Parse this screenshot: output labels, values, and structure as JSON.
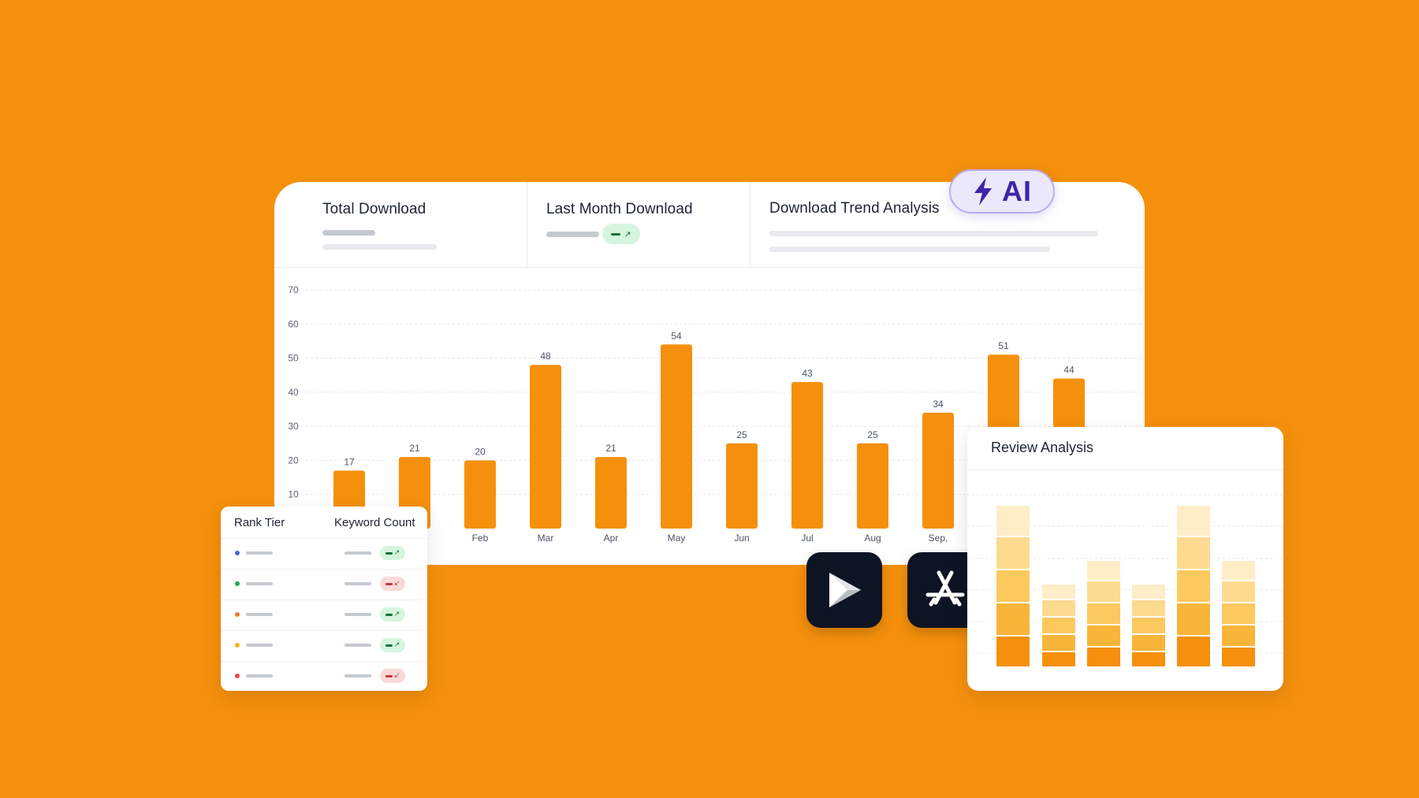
{
  "summary": {
    "total_download": {
      "title": "Total Download"
    },
    "last_month_download": {
      "title": "Last Month Download",
      "trend": "up"
    },
    "download_trend_analysis": {
      "title": "Download Trend Analysis"
    }
  },
  "ai_badge": {
    "label": "AI",
    "icon": "lightning-bolt-icon",
    "color": "#3d24a8",
    "background": "#ece8fb"
  },
  "colors": {
    "background": "#F5900C",
    "bar": "#F5900C",
    "trend_up_bg": "#d6f5df",
    "trend_down_bg": "#fbd9d9"
  },
  "chart_data": [
    {
      "type": "bar",
      "categories": [
        "",
        "",
        "Feb",
        "Mar",
        "Apr",
        "May",
        "Jun",
        "Jul",
        "Aug",
        "Sep,",
        "",
        ""
      ],
      "values": [
        17,
        21,
        20,
        48,
        21,
        54,
        25,
        43,
        25,
        34,
        51,
        44
      ],
      "data_labels": [
        "17",
        "21",
        "20",
        "48",
        "21",
        "54",
        "25",
        "43",
        "25",
        "34",
        "51",
        "44"
      ],
      "y_ticks": [
        "10",
        "20",
        "30",
        "40",
        "50",
        "60",
        "70"
      ],
      "ylim": [
        0,
        70
      ],
      "grid": true,
      "title": "",
      "xlabel": "",
      "ylabel": ""
    },
    {
      "type": "bar",
      "stacked": true,
      "title": "Review Analysis",
      "categories": [
        "",
        "",
        "",
        "",
        "",
        ""
      ],
      "series": [
        {
          "values": [
            40,
            20,
            26,
            20,
            40,
            26
          ]
        },
        {
          "values": [
            42,
            22,
            28,
            22,
            42,
            28
          ]
        },
        {
          "values": [
            42,
            22,
            28,
            22,
            42,
            28
          ]
        },
        {
          "values": [
            42,
            22,
            28,
            22,
            42,
            28
          ]
        },
        {
          "values": [
            40,
            20,
            26,
            20,
            40,
            26
          ]
        }
      ],
      "series_colors": [
        "#F5900C",
        "#F9B53A",
        "#FBC95E",
        "#FCDA90",
        "#FEEDC7"
      ],
      "grid": true
    }
  ],
  "rank_table": {
    "headers": [
      "Rank Tier",
      "Keyword Count"
    ],
    "rows": [
      {
        "dot_color": "#4a63d8",
        "trend": "up"
      },
      {
        "dot_color": "#22a65a",
        "trend": "down"
      },
      {
        "dot_color": "#f07a3a",
        "trend": "up"
      },
      {
        "dot_color": "#f3b41a",
        "trend": "up"
      },
      {
        "dot_color": "#e34848",
        "trend": "down"
      }
    ]
  },
  "store_icons": [
    {
      "name": "google-play-icon"
    },
    {
      "name": "app-store-icon"
    }
  ]
}
